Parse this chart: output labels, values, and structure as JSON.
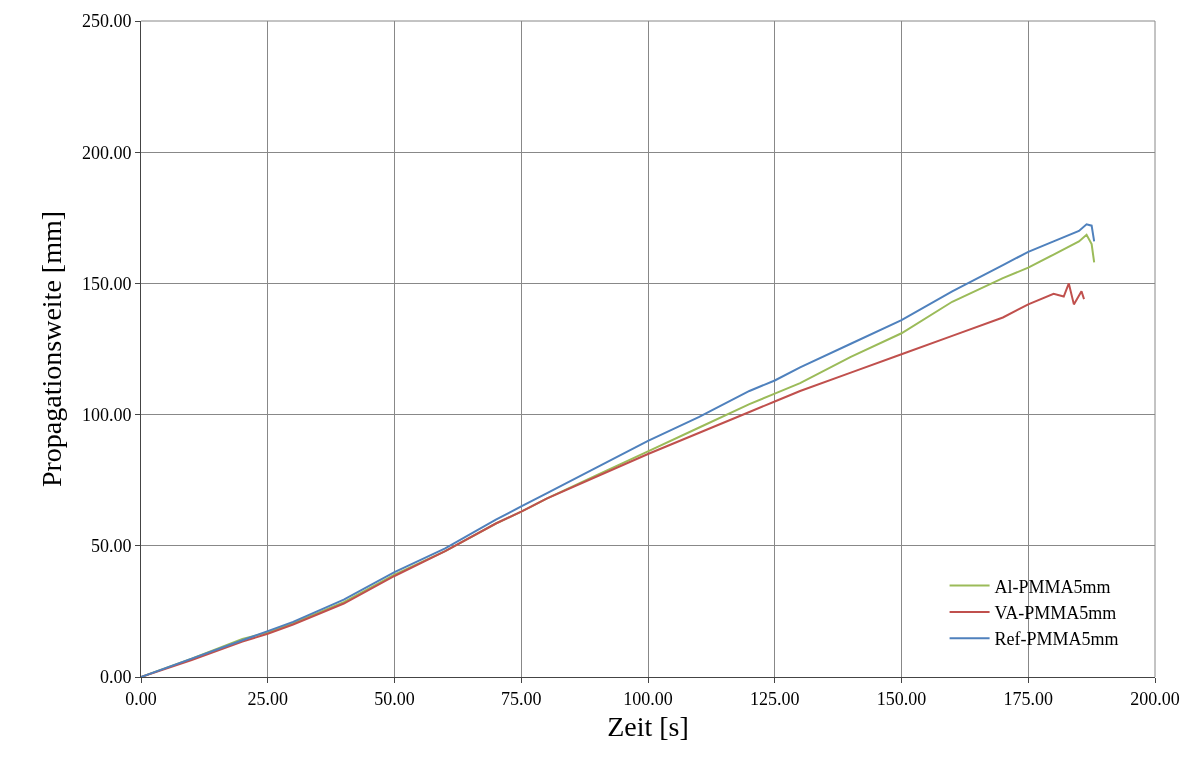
{
  "chart_data": {
    "type": "line",
    "xlabel": "Zeit [s]",
    "ylabel": "Propagationsweite [mm]",
    "xlim": [
      0,
      200
    ],
    "xticks": [
      {
        "value": 0,
        "label": "0.00"
      },
      {
        "value": 25,
        "label": "25.00"
      },
      {
        "value": 50,
        "label": "50.00"
      },
      {
        "value": 75,
        "label": "75.00"
      },
      {
        "value": 100,
        "label": "100.00"
      },
      {
        "value": 125,
        "label": "125.00"
      },
      {
        "value": 150,
        "label": "150.00"
      },
      {
        "value": 175,
        "label": "175.00"
      },
      {
        "value": 200,
        "label": "200.00"
      }
    ],
    "ylim": [
      0,
      250
    ],
    "yticks": [
      {
        "value": 0,
        "label": "0.00"
      },
      {
        "value": 50,
        "label": "50.00"
      },
      {
        "value": 100,
        "label": "100.00"
      },
      {
        "value": 150,
        "label": "150.00"
      },
      {
        "value": 200,
        "label": "200.00"
      },
      {
        "value": 250,
        "label": "250.00"
      }
    ],
    "grid": true,
    "legend": "bottom right",
    "marker": "none",
    "line_style": "solid",
    "series": [
      {
        "name": "Al-PMMA5mm",
        "color": "#9bbb59",
        "x": [
          0,
          10,
          20,
          25,
          30,
          40,
          50,
          60,
          70,
          75,
          80,
          90,
          100,
          110,
          120,
          125,
          130,
          140,
          150,
          160,
          170,
          175,
          180,
          185,
          186.5,
          187.5,
          188
        ],
        "values": [
          0,
          7,
          14.5,
          17,
          20.5,
          28.5,
          39,
          48,
          58.5,
          63,
          68,
          77,
          86,
          95,
          104,
          108,
          112,
          122,
          131,
          143,
          152,
          156,
          161,
          166,
          168.5,
          165,
          158
        ]
      },
      {
        "name": "VA-PMMA5mm",
        "color": "#c0504d",
        "x": [
          0,
          10,
          20,
          25,
          30,
          40,
          50,
          60,
          70,
          75,
          80,
          90,
          100,
          110,
          120,
          125,
          130,
          140,
          150,
          160,
          170,
          175,
          180,
          182,
          183,
          184,
          185.5,
          186
        ],
        "values": [
          0,
          6.5,
          13.5,
          16.5,
          20,
          28,
          38.5,
          48,
          58.5,
          63,
          68,
          76.5,
          85,
          93,
          101,
          105,
          109,
          116,
          123,
          130,
          137,
          142,
          146,
          145,
          150,
          142,
          147,
          144
        ]
      },
      {
        "name": "Ref-PMMA5mm",
        "color": "#4f81bd",
        "x": [
          0,
          10,
          20,
          25,
          30,
          40,
          50,
          60,
          70,
          75,
          80,
          90,
          100,
          110,
          120,
          125,
          130,
          140,
          150,
          160,
          170,
          175,
          180,
          185,
          186.5,
          187.5,
          188
        ],
        "values": [
          0,
          7,
          14,
          17.5,
          21,
          29.5,
          40,
          49,
          60,
          65,
          70,
          80,
          90,
          99,
          109,
          113,
          118,
          127,
          136,
          147,
          157,
          162,
          166,
          170,
          172.5,
          172,
          166
        ]
      }
    ]
  }
}
